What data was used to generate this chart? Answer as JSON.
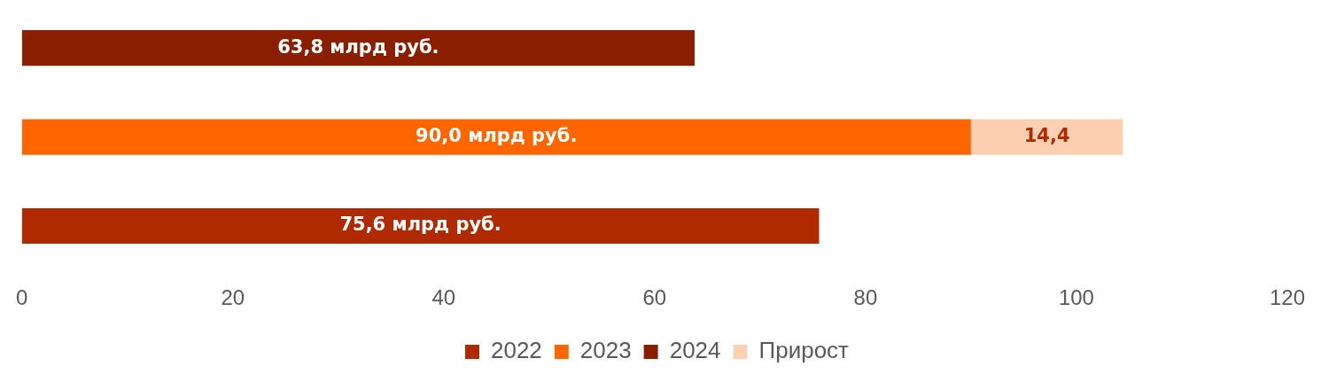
{
  "chart_data": {
    "type": "bar",
    "orientation": "horizontal",
    "stacked": true,
    "categories": [
      null,
      null,
      null
    ],
    "series": [
      {
        "name": "2022",
        "color": "#b02a00",
        "values": [
          null,
          null,
          75.6
        ],
        "value_labels": [
          null,
          null,
          "75,6 млрд руб."
        ]
      },
      {
        "name": "2023",
        "color": "#ff6600",
        "values": [
          null,
          90.0,
          null
        ],
        "value_labels": [
          null,
          "90,0 млрд руб.",
          null
        ]
      },
      {
        "name": "2024",
        "color": "#8a1e00",
        "values": [
          63.8,
          null,
          null
        ],
        "value_labels": [
          "63,8 млрд руб.",
          null,
          null
        ]
      },
      {
        "name": "Прирост",
        "color": "#fdd0b1",
        "values": [
          null,
          14.4,
          null
        ],
        "value_labels": [
          null,
          "14,4",
          null
        ]
      }
    ],
    "xlim": [
      0,
      120
    ],
    "xticks": [
      0,
      20,
      40,
      60,
      80,
      100,
      120
    ],
    "grid": false,
    "legend": "bottom",
    "tick_labels": "x"
  }
}
